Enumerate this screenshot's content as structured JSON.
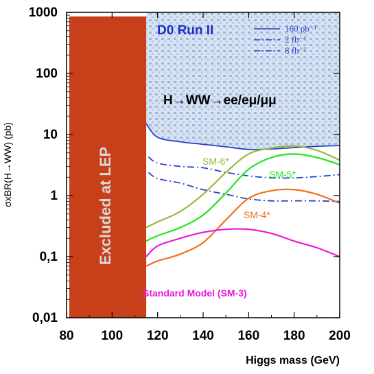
{
  "chart_data": {
    "type": "line",
    "title": "D0 Run II",
    "subtitle": "H→WW→ee/eμ/μμ",
    "xlabel": "Higgs mass (GeV)",
    "ylabel": "σxBR(H→WW) (pb)",
    "xlim": [
      80,
      200
    ],
    "ylim": [
      0.01,
      1000
    ],
    "yscale": "log",
    "x_ticks": [
      "80",
      "100",
      "120",
      "140",
      "160",
      "180",
      "200"
    ],
    "y_ticks": [
      "0,01",
      "0,1",
      "1",
      "10",
      "100",
      "1000"
    ],
    "y_tick_values": [
      0.01,
      0.1,
      1,
      10,
      100,
      1000
    ],
    "grid": false,
    "excluded_region": {
      "label": "Excluded at LEP",
      "x_range": [
        80,
        115
      ],
      "color": "#c8401a"
    },
    "limit_series": [
      {
        "name": "160 pb⁻¹",
        "style": "solid",
        "color": "#2a40c8",
        "x": [
          115,
          120,
          130,
          140,
          150,
          160,
          170,
          180,
          190,
          200
        ],
        "y": [
          15,
          9,
          7.6,
          6.9,
          6.3,
          5.7,
          5.8,
          6.1,
          6.4,
          6.6
        ]
      },
      {
        "name": "2 fb⁻¹",
        "style": "dashdot",
        "color": "#2a40c8",
        "x": [
          116,
          120,
          130,
          140,
          150,
          160,
          170,
          180,
          190,
          200
        ],
        "y": [
          4.3,
          3.4,
          3.0,
          2.85,
          2.4,
          2.1,
          1.95,
          1.95,
          2.05,
          2.2
        ]
      },
      {
        "name": "8 fb⁻¹",
        "style": "dashdot",
        "color": "#2a40c8",
        "x": [
          116,
          120,
          130,
          140,
          150,
          160,
          170,
          180,
          190,
          200
        ],
        "y": [
          2.4,
          1.9,
          1.6,
          1.25,
          1.05,
          0.88,
          0.82,
          0.82,
          0.82,
          0.8
        ]
      }
    ],
    "model_series": [
      {
        "name": "SM-6*",
        "color": "#9ab83a",
        "x": [
          115,
          120,
          130,
          140,
          150,
          160,
          170,
          180,
          190,
          200
        ],
        "y": [
          0.3,
          0.37,
          0.55,
          1.05,
          2.4,
          4.8,
          6.0,
          6.5,
          5.5,
          3.8
        ]
      },
      {
        "name": "SM-5*",
        "color": "#1ee61e",
        "x": [
          115,
          120,
          130,
          140,
          150,
          160,
          170,
          180,
          190,
          200
        ],
        "y": [
          0.18,
          0.22,
          0.3,
          0.48,
          1.1,
          2.7,
          4.2,
          4.8,
          4.2,
          3.2
        ]
      },
      {
        "name": "SM-4*",
        "color": "#f07020",
        "x": [
          115,
          120,
          130,
          140,
          150,
          160,
          170,
          180,
          190,
          200
        ],
        "y": [
          0.07,
          0.085,
          0.11,
          0.17,
          0.4,
          0.9,
          1.2,
          1.25,
          1.05,
          0.75
        ]
      },
      {
        "name": "Standard Model (SM-3)",
        "color": "#e619d9",
        "x": [
          115,
          120,
          130,
          140,
          150,
          160,
          170,
          180,
          190,
          200
        ],
        "y": [
          0.1,
          0.15,
          0.2,
          0.25,
          0.28,
          0.28,
          0.24,
          0.18,
          0.14,
          0.1
        ]
      }
    ],
    "legend": [
      {
        "label": "160 pb⁻¹",
        "style": "solid"
      },
      {
        "label": "2 fb⁻¹",
        "style": "dashdot"
      },
      {
        "label": "8 fb⁻¹",
        "style": "dashdot"
      }
    ],
    "legend_position": "top-right"
  }
}
